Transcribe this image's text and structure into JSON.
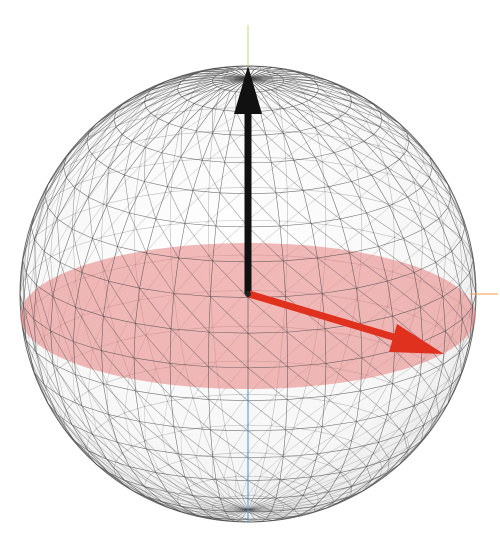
{
  "scene": {
    "type": "bloch-sphere",
    "sphere_fill": "#f2f2f2",
    "wireframe_color": "#444444",
    "equator_plane_color": "#e88080",
    "vertical_axis_top_color": "#b6e27a",
    "vertical_axis_bottom_color": "#4a8fe0",
    "horizontal_axis_color": "#f0a050",
    "wireframe": {
      "latitude_bands": 20,
      "longitude_segments": 36
    },
    "vectors": [
      {
        "name": "vertical-vector",
        "color": "#111111",
        "direction": "+z"
      },
      {
        "name": "equatorial-vector",
        "color": "#e0301e",
        "direction": "equator"
      }
    ]
  }
}
